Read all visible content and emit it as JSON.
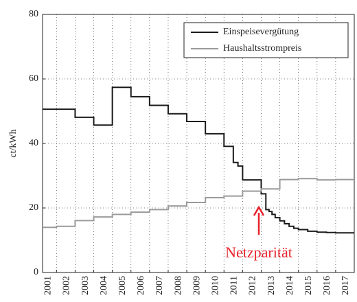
{
  "chart_data": {
    "type": "line",
    "step": true,
    "ylabel": "ct/kWh",
    "xlim": [
      2000.25,
      2017
    ],
    "xticks": [
      2001,
      2002,
      2003,
      2004,
      2005,
      2006,
      2007,
      2008,
      2009,
      2010,
      2011,
      2012,
      2013,
      2014,
      2015,
      2016,
      2017
    ],
    "ylim": [
      0,
      80
    ],
    "yticks": [
      0,
      20,
      40,
      60,
      80
    ],
    "grid": true,
    "legend": "upper right",
    "annotation": {
      "text": "Netzparität",
      "color": "#e8202a"
    },
    "series": [
      {
        "name": "Einspeisevergütung",
        "color": "#1a1a1a",
        "x": [
          2000.25,
          2002,
          2003,
          2004,
          2005,
          2006,
          2007,
          2008,
          2009,
          2010,
          2010.5,
          2010.75,
          2011,
          2012,
          2012.25,
          2012.42,
          2012.58,
          2012.75,
          2013,
          2013.25,
          2013.5,
          2013.75,
          2014,
          2014.5,
          2015,
          2015.5,
          2016,
          2016.5,
          2017
        ],
        "values": [
          50.6,
          48.1,
          45.7,
          57.4,
          54.5,
          51.8,
          49.2,
          46.8,
          43.0,
          39.1,
          34.1,
          33.0,
          28.7,
          24.4,
          19.5,
          18.9,
          18.0,
          17.0,
          16.0,
          15.1,
          14.3,
          13.7,
          13.3,
          12.8,
          12.5,
          12.4,
          12.3,
          12.3,
          12.3
        ]
      },
      {
        "name": "Haushaltsstrompreis",
        "color": "#9a9a9a",
        "x": [
          2000.25,
          2001,
          2002,
          2003,
          2004,
          2005,
          2006,
          2007,
          2008,
          2009,
          2010,
          2011,
          2012,
          2013,
          2014,
          2015,
          2016,
          2017
        ],
        "values": [
          14.0,
          14.3,
          16.1,
          17.2,
          18.0,
          18.7,
          19.5,
          20.6,
          21.7,
          23.2,
          23.7,
          25.2,
          25.9,
          28.8,
          29.1,
          28.7,
          28.8,
          28.8
        ]
      }
    ]
  }
}
